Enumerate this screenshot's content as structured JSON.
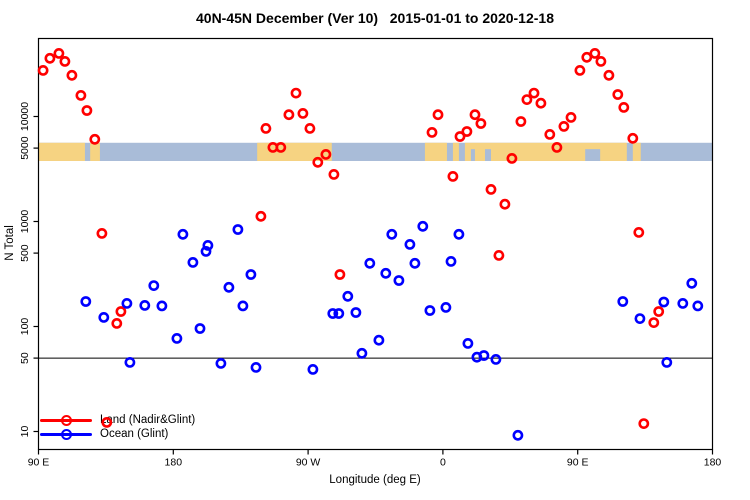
{
  "title": "40N-45N December (Ver 10)   2015-01-01 to 2020-12-18",
  "chart_data": {
    "type": "scatter",
    "title": "40N-45N December (Ver 10)   2015-01-01 to 2020-12-18",
    "xlabel": "Longitude (deg E)",
    "ylabel": "N Total",
    "x_axis": {
      "range": [
        -270,
        180
      ],
      "note": "longitude axis wraps: 90E to 180 to 90W to 0 to 90E to 180",
      "ticks": [
        {
          "value": -270,
          "label": "90 E"
        },
        {
          "value": -180,
          "label": "180"
        },
        {
          "value": -90,
          "label": "90 W"
        },
        {
          "value": 0,
          "label": "0"
        },
        {
          "value": 90,
          "label": "90 E"
        },
        {
          "value": 180,
          "label": "180"
        }
      ]
    },
    "y_axis": {
      "scale": "log",
      "range": [
        6.7,
        55000
      ],
      "ticks": [
        {
          "value": 10,
          "label": "10"
        },
        {
          "value": 50,
          "label": "50"
        },
        {
          "value": 100,
          "label": "100"
        },
        {
          "value": 500,
          "label": "500"
        },
        {
          "value": 1000,
          "label": "1000"
        },
        {
          "value": 5000,
          "label": "5000"
        },
        {
          "value": 10000,
          "label": "10000"
        }
      ]
    },
    "reference_line_n": 50,
    "map_band": {
      "n_range": [
        3770,
        5620
      ],
      "ocean_color": "#A9BCD8",
      "land_color": "#F6D382",
      "land_segments_lon": [
        [
          -270,
          -239
        ],
        [
          -235.5,
          -229
        ],
        [
          -124,
          -74.2
        ],
        [
          -12,
          2.7
        ],
        [
          6.7,
          10.7
        ],
        [
          14.7,
          122.8
        ],
        [
          126.8,
          132.1
        ]
      ],
      "ocean_patches_lon": [
        [
          18.7,
          21.4
        ],
        [
          28.1,
          32.1
        ],
        [
          95,
          105
        ]
      ]
    },
    "legend": {
      "position": "bottom-left"
    },
    "series": [
      {
        "name": "Land (Nadir&Glint)",
        "color": "#FF0000",
        "points": [
          [
            -266.9,
            27500
          ],
          [
            -262.4,
            35800
          ],
          [
            -256.4,
            39900
          ],
          [
            -252.4,
            33500
          ],
          [
            -247.7,
            24700
          ],
          [
            -241.7,
            15900
          ],
          [
            -237.7,
            11400
          ],
          [
            -232.4,
            6070
          ],
          [
            -227.7,
            770
          ],
          [
            -224.4,
            12.2
          ],
          [
            -217.7,
            107
          ],
          [
            -215.0,
            139
          ],
          [
            -121.5,
            1120
          ],
          [
            -118.2,
            7700
          ],
          [
            -113.5,
            5080
          ],
          [
            -108.2,
            5080
          ],
          [
            -102.8,
            10400
          ],
          [
            -98.1,
            16700
          ],
          [
            -93.5,
            10700
          ],
          [
            -88.8,
            7700
          ],
          [
            -83.5,
            3660
          ],
          [
            -78.1,
            4360
          ],
          [
            -72.8,
            2810
          ],
          [
            -68.8,
            313
          ],
          [
            -7.3,
            7060
          ],
          [
            -3.3,
            10400
          ],
          [
            6.7,
            2690
          ],
          [
            11.4,
            6450
          ],
          [
            16.0,
            7200
          ],
          [
            21.4,
            10400
          ],
          [
            25.4,
            8580
          ],
          [
            32.1,
            2020
          ],
          [
            37.4,
            475
          ],
          [
            41.4,
            1460
          ],
          [
            46.1,
            3990
          ],
          [
            52.1,
            8960
          ],
          [
            56.1,
            14500
          ],
          [
            60.8,
            16700
          ],
          [
            65.4,
            13400
          ],
          [
            71.4,
            6760
          ],
          [
            76.1,
            5080
          ],
          [
            80.8,
            8050
          ],
          [
            85.5,
            9800
          ],
          [
            91.5,
            27500
          ],
          [
            96.1,
            36600
          ],
          [
            101.5,
            39900
          ],
          [
            105.5,
            33500
          ],
          [
            110.8,
            24700
          ],
          [
            116.8,
            16200
          ],
          [
            120.8,
            12200
          ],
          [
            126.8,
            6200
          ],
          [
            130.8,
            788
          ],
          [
            134.1,
            11.9
          ],
          [
            140.8,
            109
          ],
          [
            144.1,
            139
          ]
        ]
      },
      {
        "name": "Ocean (Glint)",
        "color": "#0000FF",
        "points": [
          [
            -238.4,
            173
          ],
          [
            -226.4,
            122
          ],
          [
            -211.0,
            166
          ],
          [
            -209.0,
            45.5
          ],
          [
            -199.0,
            159
          ],
          [
            -193.0,
            245
          ],
          [
            -187.6,
            157
          ],
          [
            -177.6,
            77
          ],
          [
            -173.6,
            755
          ],
          [
            -166.9,
            408
          ],
          [
            -162.2,
            95.7
          ],
          [
            -158.2,
            519
          ],
          [
            -156.9,
            592
          ],
          [
            -148.2,
            44.5
          ],
          [
            -142.9,
            236
          ],
          [
            -136.9,
            840
          ],
          [
            -133.5,
            157
          ],
          [
            -128.2,
            313
          ],
          [
            -124.8,
            40.8
          ],
          [
            -86.8,
            39
          ],
          [
            -73.5,
            133
          ],
          [
            -69.5,
            133
          ],
          [
            -63.5,
            194
          ],
          [
            -58.1,
            136
          ],
          [
            -54.1,
            55.5
          ],
          [
            -48.8,
            400
          ],
          [
            -42.7,
            74
          ],
          [
            -38.1,
            321
          ],
          [
            -34.1,
            755
          ],
          [
            -29.4,
            274
          ],
          [
            -22.0,
            605
          ],
          [
            -18.7,
            400
          ],
          [
            -13.4,
            900
          ],
          [
            -8.7,
            142
          ],
          [
            2.0,
            152
          ],
          [
            5.4,
            417
          ],
          [
            10.7,
            755
          ],
          [
            16.7,
            69
          ],
          [
            22.7,
            51
          ],
          [
            27.4,
            53
          ],
          [
            35.4,
            48.6
          ],
          [
            50.1,
            9.2
          ],
          [
            120.1,
            173
          ],
          [
            131.5,
            119
          ],
          [
            147.5,
            171
          ],
          [
            149.5,
            45.5
          ],
          [
            160.2,
            166
          ],
          [
            166.2,
            258
          ],
          [
            170.2,
            157
          ]
        ]
      }
    ]
  }
}
